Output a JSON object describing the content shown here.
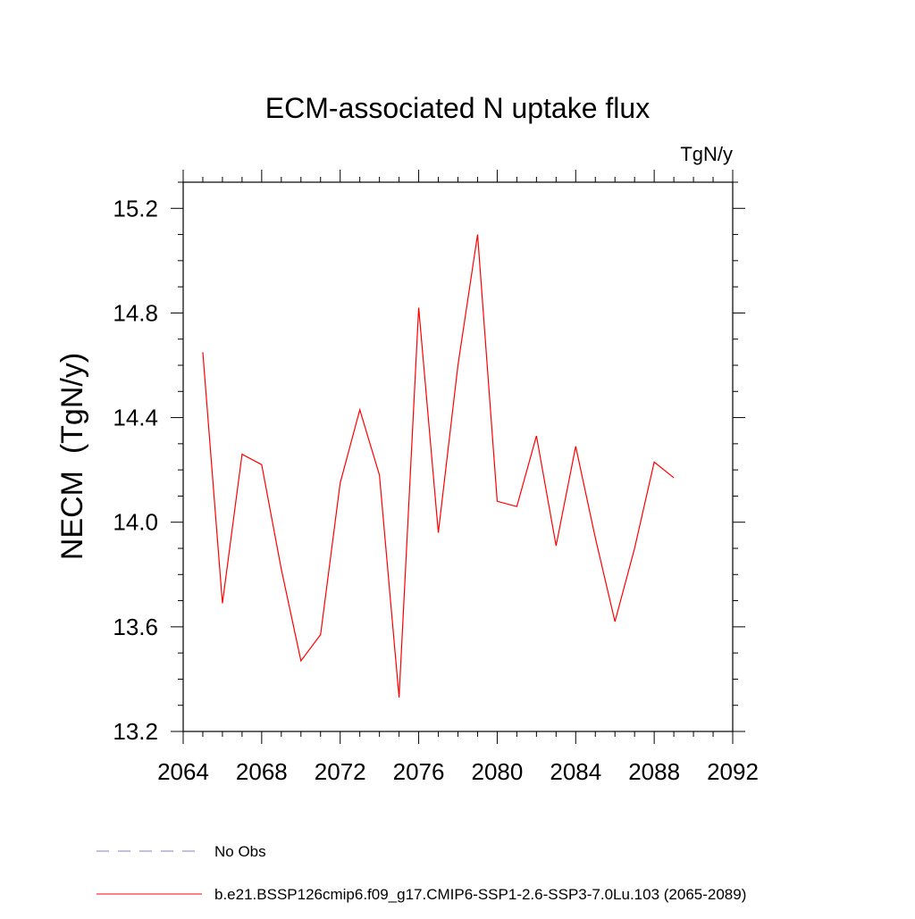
{
  "chart_data": {
    "type": "line",
    "title": "ECM-associated N uptake flux",
    "units_label": "TgN/y",
    "xlabel": "",
    "ylabel": "NECM  (TgN/y)",
    "xlim": [
      2064,
      2092
    ],
    "ylim": [
      13.2,
      15.3
    ],
    "xticks": [
      2064,
      2068,
      2072,
      2076,
      2080,
      2084,
      2088,
      2092
    ],
    "xtick_labels": [
      "2064",
      "2068",
      "2072",
      "2076",
      "2080",
      "2084",
      "2088",
      "2092"
    ],
    "yticks": [
      13.2,
      13.6,
      14.0,
      14.4,
      14.8,
      15.2
    ],
    "ytick_labels": [
      "13.2",
      "13.6",
      "14.0",
      "14.4",
      "14.8",
      "15.2"
    ],
    "grid": false,
    "legend_position": "bottom",
    "series": [
      {
        "name": "b.e21.BSSP126cmip6.f09_g17.CMIP6-SSP1-2.6-SSP3-7.0Lu.103 (2065-2089)",
        "color": "#ff0000",
        "style": "solid",
        "x": [
          2065,
          2066,
          2067,
          2068,
          2069,
          2070,
          2071,
          2072,
          2073,
          2074,
          2075,
          2076,
          2077,
          2078,
          2079,
          2080,
          2081,
          2082,
          2083,
          2084,
          2085,
          2086,
          2087,
          2088,
          2089
        ],
        "values": [
          14.65,
          13.69,
          14.26,
          14.22,
          13.82,
          13.47,
          13.57,
          14.15,
          14.43,
          14.18,
          13.33,
          14.82,
          13.96,
          14.6,
          15.1,
          14.08,
          14.06,
          14.33,
          13.91,
          14.29,
          13.94,
          13.62,
          13.9,
          14.23,
          14.17
        ]
      },
      {
        "name": "No Obs",
        "color": "#8a7fc0",
        "style": "dashed",
        "x": [],
        "values": []
      }
    ]
  }
}
